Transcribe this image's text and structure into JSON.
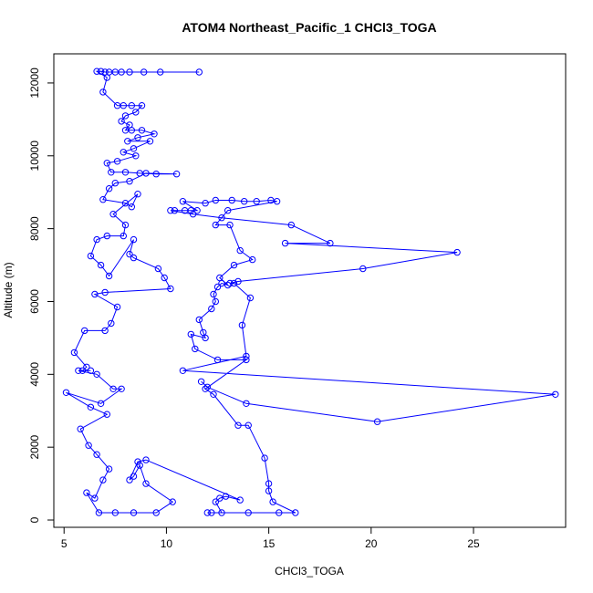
{
  "chart_data": {
    "type": "line",
    "title": "ATOM4 Northeast_Pacific_1 CHCl3_TOGA",
    "xlabel": "CHCl3_TOGA",
    "ylabel": "Altitude (m)",
    "xlim": [
      4.5,
      29.5
    ],
    "ylim": [
      -200,
      12800
    ],
    "xticks": [
      5,
      10,
      15,
      20,
      25
    ],
    "yticks": [
      0,
      2000,
      4000,
      6000,
      8000,
      10000,
      12000
    ],
    "grid": false,
    "series": [
      {
        "color": "#0000ff",
        "marker": "open-circle",
        "points": [
          [
            11.6,
            12300
          ],
          [
            9.7,
            12300
          ],
          [
            8.9,
            12300
          ],
          [
            8.2,
            12300
          ],
          [
            7.8,
            12300
          ],
          [
            7.5,
            12300
          ],
          [
            7.2,
            12300
          ],
          [
            7.0,
            12300
          ],
          [
            6.8,
            12320
          ],
          [
            6.6,
            12320
          ],
          [
            7.1,
            12150
          ],
          [
            6.9,
            11750
          ],
          [
            7.6,
            11380
          ],
          [
            7.9,
            11380
          ],
          [
            8.3,
            11380
          ],
          [
            8.8,
            11380
          ],
          [
            8.5,
            11200
          ],
          [
            8.0,
            11100
          ],
          [
            7.8,
            10950
          ],
          [
            8.2,
            10850
          ],
          [
            8.0,
            10700
          ],
          [
            8.3,
            10700
          ],
          [
            8.8,
            10700
          ],
          [
            9.4,
            10600
          ],
          [
            8.6,
            10500
          ],
          [
            8.1,
            10400
          ],
          [
            9.2,
            10400
          ],
          [
            8.4,
            10200
          ],
          [
            7.9,
            10100
          ],
          [
            8.5,
            10000
          ],
          [
            7.6,
            9850
          ],
          [
            7.1,
            9800
          ],
          [
            7.3,
            9550
          ],
          [
            8.0,
            9550
          ],
          [
            8.7,
            9520
          ],
          [
            9.5,
            9500
          ],
          [
            10.5,
            9500
          ],
          [
            9.0,
            9520
          ],
          [
            8.2,
            9300
          ],
          [
            7.5,
            9250
          ],
          [
            7.2,
            9100
          ],
          [
            6.9,
            8800
          ],
          [
            8.0,
            8700
          ],
          [
            8.3,
            8600
          ],
          [
            8.6,
            8950
          ],
          [
            7.4,
            8400
          ],
          [
            8.0,
            8100
          ],
          [
            7.9,
            7800
          ],
          [
            7.1,
            7800
          ],
          [
            6.6,
            7700
          ],
          [
            6.3,
            7250
          ],
          [
            6.8,
            7000
          ],
          [
            7.2,
            6700
          ],
          [
            8.4,
            7700
          ],
          [
            8.2,
            7300
          ],
          [
            8.4,
            7200
          ],
          [
            9.6,
            6900
          ],
          [
            9.9,
            6650
          ],
          [
            10.2,
            6350
          ],
          [
            7.0,
            6250
          ],
          [
            6.5,
            6200
          ],
          [
            7.6,
            5850
          ],
          [
            7.3,
            5400
          ],
          [
            7.0,
            5200
          ],
          [
            6.0,
            5200
          ],
          [
            5.5,
            4600
          ],
          [
            6.1,
            4200
          ],
          [
            5.9,
            4100
          ],
          [
            6.3,
            4100
          ],
          [
            5.7,
            4100
          ],
          [
            6.6,
            4000
          ],
          [
            7.4,
            3600
          ],
          [
            7.8,
            3600
          ],
          [
            6.8,
            3200
          ],
          [
            5.1,
            3500
          ],
          [
            6.3,
            3100
          ],
          [
            7.1,
            2900
          ],
          [
            5.8,
            2500
          ],
          [
            6.2,
            2050
          ],
          [
            6.6,
            1800
          ],
          [
            7.2,
            1400
          ],
          [
            6.9,
            1100
          ],
          [
            6.5,
            600
          ],
          [
            6.1,
            750
          ],
          [
            6.7,
            200
          ],
          [
            7.5,
            200
          ],
          [
            8.4,
            200
          ],
          [
            9.5,
            200
          ],
          [
            10.3,
            500
          ],
          [
            9.0,
            1000
          ],
          [
            8.7,
            1500
          ],
          [
            8.4,
            1200
          ],
          [
            8.2,
            1100
          ],
          [
            8.6,
            1600
          ],
          [
            9.0,
            1650
          ],
          [
            13.6,
            550
          ],
          [
            12.9,
            650
          ],
          [
            12.6,
            600
          ],
          [
            12.4,
            500
          ],
          [
            12.7,
            200
          ],
          [
            12.0,
            200
          ],
          [
            12.2,
            200
          ],
          [
            14.0,
            200
          ],
          [
            15.5,
            200
          ],
          [
            16.3,
            200
          ],
          [
            15.2,
            500
          ],
          [
            15.0,
            800
          ],
          [
            15.0,
            1000
          ],
          [
            14.8,
            1700
          ],
          [
            14.0,
            2600
          ],
          [
            13.5,
            2600
          ],
          [
            12.3,
            3450
          ],
          [
            11.9,
            3600
          ],
          [
            13.9,
            4400
          ],
          [
            12.5,
            4400
          ],
          [
            11.4,
            4700
          ],
          [
            11.2,
            5100
          ],
          [
            11.9,
            5000
          ],
          [
            11.8,
            5150
          ],
          [
            11.6,
            5500
          ],
          [
            12.2,
            5800
          ],
          [
            12.4,
            6000
          ],
          [
            12.3,
            6200
          ],
          [
            12.5,
            6400
          ],
          [
            12.7,
            6500
          ],
          [
            13.0,
            6450
          ],
          [
            12.6,
            6650
          ],
          [
            13.3,
            7000
          ],
          [
            14.2,
            7150
          ],
          [
            13.6,
            7400
          ],
          [
            13.1,
            8100
          ],
          [
            12.4,
            8100
          ],
          [
            13.0,
            8500
          ],
          [
            15.4,
            8750
          ],
          [
            15.1,
            8780
          ],
          [
            14.4,
            8750
          ],
          [
            13.8,
            8750
          ],
          [
            13.2,
            8780
          ],
          [
            12.4,
            8780
          ],
          [
            11.9,
            8700
          ],
          [
            10.8,
            8750
          ],
          [
            11.5,
            8500
          ],
          [
            11.2,
            8500
          ],
          [
            10.9,
            8500
          ],
          [
            10.4,
            8500
          ],
          [
            10.2,
            8500
          ],
          [
            11.3,
            8400
          ],
          [
            12.7,
            8300
          ],
          [
            16.1,
            8100
          ],
          [
            18.0,
            7600
          ],
          [
            15.8,
            7600
          ],
          [
            24.2,
            7350
          ],
          [
            19.6,
            6900
          ],
          [
            13.5,
            6550
          ],
          [
            13.1,
            6500
          ],
          [
            13.3,
            6500
          ],
          [
            14.1,
            6100
          ],
          [
            13.7,
            5350
          ],
          [
            13.9,
            4500
          ],
          [
            10.8,
            4100
          ],
          [
            29.0,
            3450
          ],
          [
            20.3,
            2700
          ],
          [
            13.9,
            3200
          ],
          [
            12.0,
            3650
          ],
          [
            11.7,
            3800
          ]
        ]
      }
    ]
  }
}
